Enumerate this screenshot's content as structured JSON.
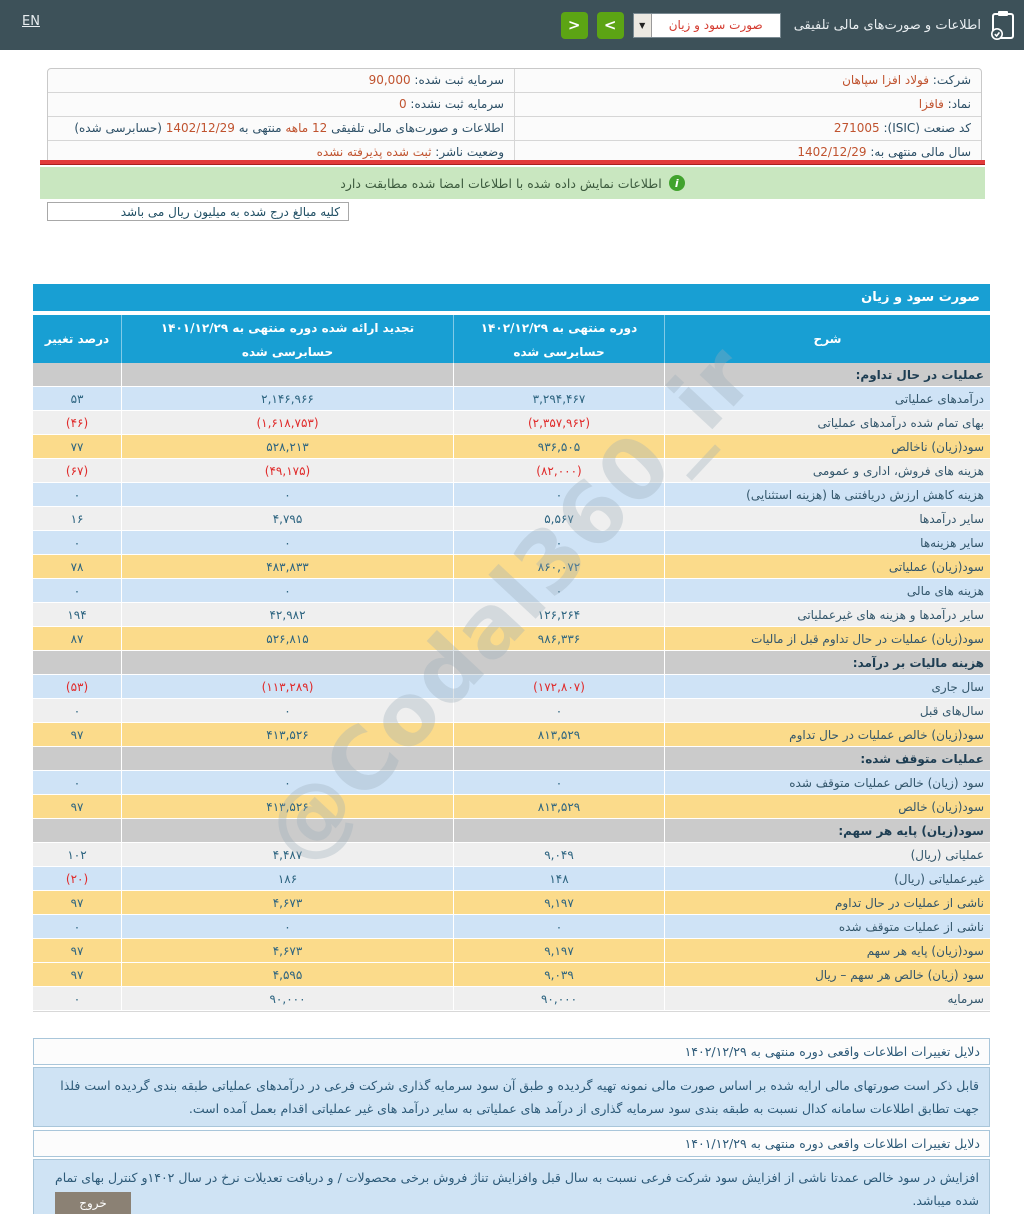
{
  "colors": {
    "accent_blue": "#189fd3",
    "row_blue": "#cfe3f6",
    "row_yellow": "#fbdb8b",
    "section_gray": "#cbcbcb",
    "negative_red": "#e02b2b",
    "value_orange": "#c0532f",
    "button_green": "#5ca414",
    "banner_green": "#c9e7c0"
  },
  "topbar": {
    "en_link": "EN",
    "title": "اطلاعات و صورت‌های مالی تلفیقی",
    "report_select": "صورت سود و زیان",
    "chevron_forward": ">",
    "chevron_back": "<",
    "select_arrow": "▼"
  },
  "info": {
    "rows": [
      {
        "right": [
          {
            "t": "شرکت: ",
            "red": false
          },
          {
            "t": "فولاد افزا سپاهان",
            "red": true
          }
        ],
        "left": [
          {
            "t": "سرمایه ثبت شده: ",
            "red": false
          },
          {
            "t": "90,000",
            "red": true
          }
        ]
      },
      {
        "right": [
          {
            "t": "نماد: ",
            "red": false
          },
          {
            "t": "فافزا",
            "red": true
          }
        ],
        "left": [
          {
            "t": "سرمایه ثبت نشده: ",
            "red": false
          },
          {
            "t": "0",
            "red": true
          }
        ]
      },
      {
        "right": [
          {
            "t": "کد صنعت (ISIC): ",
            "red": false
          },
          {
            "t": "271005",
            "red": true
          }
        ],
        "left": [
          {
            "t": "اطلاعات و صورت‌های مالی تلفیقی ",
            "red": false
          },
          {
            "t": "12 ماهه",
            "red": true
          },
          {
            "t": " منتهی به ",
            "red": false
          },
          {
            "t": "1402/12/29",
            "red": true
          },
          {
            "t": " (حسابرسی شده)",
            "red": false
          }
        ]
      },
      {
        "right": [
          {
            "t": "سال مالی منتهی به: ",
            "red": false
          },
          {
            "t": "1402/12/29",
            "red": true
          }
        ],
        "left": [
          {
            "t": "وضعیت ناشر: ",
            "red": false
          },
          {
            "t": "ثبت شده پذیرفته نشده",
            "red": true
          }
        ]
      }
    ]
  },
  "banner": {
    "icon": "i",
    "text": "اطلاعات نمایش داده شده با اطلاعات امضا شده مطابقت دارد"
  },
  "unit_note": "کلیه مبالغ درج شده به میلیون ریال می باشد",
  "watermark": "@Codal360_ir",
  "statement": {
    "title": "صورت سود و زیان",
    "columns": {
      "desc": "شرح",
      "p1_title": "دوره منتهی به ۱۴۰۲/۱۲/۲۹",
      "p1_sub": "حسابرسی شده",
      "p2_title": "تجدید ارائه شده دوره منتهی به ۱۴۰۱/۱۲/۲۹",
      "p2_sub": "حسابرسی شده",
      "change": "درصد تغییر"
    },
    "rows": [
      {
        "type": "section",
        "label": "عملیات در حال تداوم:"
      },
      {
        "type": "data",
        "style": "blue",
        "label": "درآمدهای عملیاتی",
        "p1": "۳,۲۹۴,۴۶۷",
        "p2": "۲,۱۴۶,۹۶۶",
        "chg": "۵۳"
      },
      {
        "type": "data",
        "style": "white",
        "label": "بهای تمام شده درآمدهای عملیاتی",
        "p1": "(۲,۳۵۷,۹۶۲)",
        "p2": "(۱,۶۱۸,۷۵۳)",
        "chg": "(۴۶)"
      },
      {
        "type": "data",
        "style": "yellow",
        "label": "سود(زیان) ناخالص",
        "p1": "۹۳۶,۵۰۵",
        "p2": "۵۲۸,۲۱۳",
        "chg": "۷۷"
      },
      {
        "type": "data",
        "style": "white",
        "label": "هزینه های فروش، اداری و عمومی",
        "p1": "(۸۲,۰۰۰)",
        "p2": "(۴۹,۱۷۵)",
        "chg": "(۶۷)"
      },
      {
        "type": "data",
        "style": "blue",
        "label": "هزینه کاهش ارزش دریافتنی ها (هزینه استثنایی)",
        "p1": "۰",
        "p2": "۰",
        "chg": "۰"
      },
      {
        "type": "data",
        "style": "white",
        "label": "سایر درآمدها",
        "p1": "۵,۵۶۷",
        "p2": "۴,۷۹۵",
        "chg": "۱۶"
      },
      {
        "type": "data",
        "style": "blue",
        "label": "سایر هزینه‌ها",
        "p1": "۰",
        "p2": "۰",
        "chg": "۰"
      },
      {
        "type": "data",
        "style": "yellow",
        "label": "سود(زیان) عملیاتی",
        "p1": "۸۶۰,۰۷۲",
        "p2": "۴۸۳,۸۳۳",
        "chg": "۷۸"
      },
      {
        "type": "data",
        "style": "blue",
        "label": "هزینه های مالی",
        "p1": "۰",
        "p2": "۰",
        "chg": "۰"
      },
      {
        "type": "data",
        "style": "white",
        "label": "سایر درآمدها و هزینه های غیرعملیاتی",
        "p1": "۱۲۶,۲۶۴",
        "p2": "۴۲,۹۸۲",
        "chg": "۱۹۴"
      },
      {
        "type": "data",
        "style": "yellow",
        "label": "سود(زیان) عملیات در حال تداوم قبل از مالیات",
        "p1": "۹۸۶,۳۳۶",
        "p2": "۵۲۶,۸۱۵",
        "chg": "۸۷"
      },
      {
        "type": "section",
        "label": "هزینه مالیات بر درآمد:"
      },
      {
        "type": "data",
        "style": "blue",
        "label": "سال جاری",
        "p1": "(۱۷۲,۸۰۷)",
        "p2": "(۱۱۳,۲۸۹)",
        "chg": "(۵۳)"
      },
      {
        "type": "data",
        "style": "white",
        "label": "سال‌های قبل",
        "p1": "۰",
        "p2": "۰",
        "chg": "۰"
      },
      {
        "type": "data",
        "style": "yellow",
        "label": "سود(زیان) خالص عملیات در حال تداوم",
        "p1": "۸۱۳,۵۲۹",
        "p2": "۴۱۳,۵۲۶",
        "chg": "۹۷"
      },
      {
        "type": "section",
        "label": "عملیات متوقف شده:"
      },
      {
        "type": "data",
        "style": "blue",
        "label": "سود (زیان) خالص عملیات متوقف شده",
        "p1": "۰",
        "p2": "۰",
        "chg": "۰"
      },
      {
        "type": "data",
        "style": "yellow",
        "label": "سود(زیان) خالص",
        "p1": "۸۱۳,۵۲۹",
        "p2": "۴۱۳,۵۲۶",
        "chg": "۹۷"
      },
      {
        "type": "section",
        "label": "سود(زیان) پایه هر سهم:"
      },
      {
        "type": "data",
        "style": "white",
        "label": "عملیاتی (ریال)",
        "p1": "۹,۰۴۹",
        "p2": "۴,۴۸۷",
        "chg": "۱۰۲"
      },
      {
        "type": "data",
        "style": "blue",
        "label": "غیرعملیاتی (ریال)",
        "p1": "۱۴۸",
        "p2": "۱۸۶",
        "chg": "(۲۰)"
      },
      {
        "type": "data",
        "style": "yellow",
        "label": "ناشی از عملیات در حال تداوم",
        "p1": "۹,۱۹۷",
        "p2": "۴,۶۷۳",
        "chg": "۹۷"
      },
      {
        "type": "data",
        "style": "blue",
        "label": "ناشی از عملیات متوقف شده",
        "p1": "۰",
        "p2": "۰",
        "chg": "۰"
      },
      {
        "type": "data",
        "style": "yellow",
        "label": "سود(زیان) پایه هر سهم",
        "p1": "۹,۱۹۷",
        "p2": "۴,۶۷۳",
        "chg": "۹۷"
      },
      {
        "type": "data",
        "style": "yellow",
        "label": "سود (زیان) خالص هر سهم – ریال",
        "p1": "۹,۰۳۹",
        "p2": "۴,۵۹۵",
        "chg": "۹۷"
      },
      {
        "type": "data",
        "style": "white",
        "label": "سرمایه",
        "p1": "۹۰,۰۰۰",
        "p2": "۹۰,۰۰۰",
        "chg": "۰"
      }
    ]
  },
  "notes": [
    {
      "header": "دلایل تغییرات اطلاعات واقعی دوره منتهی به ۱۴۰۲/۱۲/۲۹",
      "body": "قابل ذکر است صورتهای مالی ارایه شده بر اساس صورت مالی نمونه تهیه گردیده و طبق آن سود سرمایه گذاری شرکت فرعی در درآمدهای عملیاتی طبقه بندی گردیده است فلذا جهت تطابق اطلاعات سامانه کدال نسبت به طبقه بندی سود سرمایه گذاری از درآمد های عملیاتی به سایر درآمد های غیر عملیاتی اقدام بعمل آمده است."
    },
    {
      "header": "دلایل تغییرات اطلاعات واقعی دوره منتهی به ۱۴۰۱/۱۲/۲۹",
      "body": "افزایش در سود خالص عمدتا ناشی از افزایش سود شرکت فرعی نسبت به سال قبل وافزایش تناژ فروش برخی محصولات / و دریافت تعدیلات نرخ در سال ۱۴۰۲و کنترل بهای تمام شده میباشد."
    }
  ],
  "footer": {
    "exit_label": "خروج"
  }
}
